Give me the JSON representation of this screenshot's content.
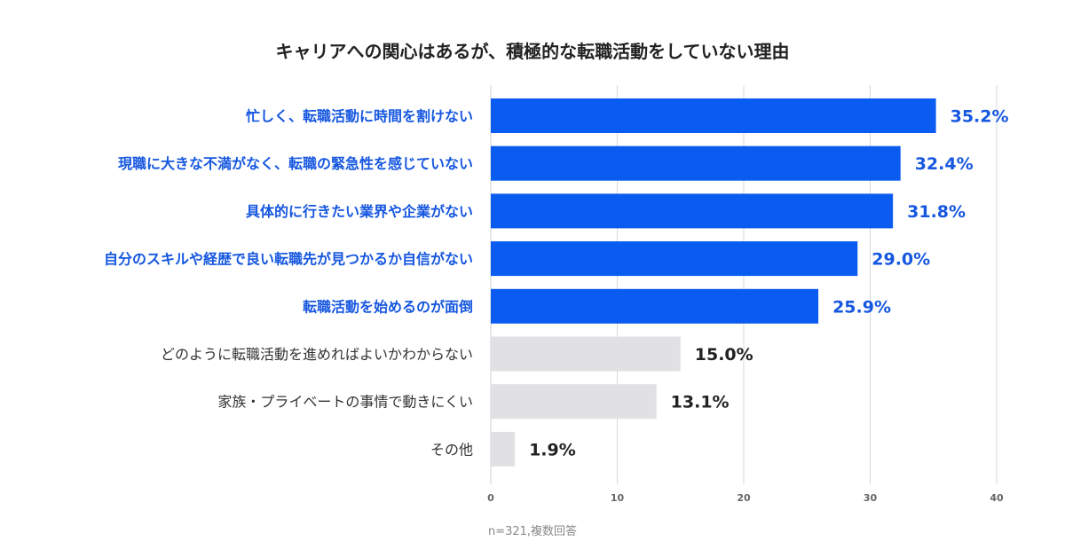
{
  "chart_data": {
    "type": "bar",
    "orientation": "horizontal",
    "title": "キャリアへの関心はあるが、積極的な転職活動をしていない理由",
    "note": "n=321,複数回答",
    "categories": [
      "忙しく、転職活動に時間を割けない",
      "現職に大きな不満がなく、転職の緊急性を感じていない",
      "具体的に行きたい業界や企業がない",
      "自分のスキルや経歴で良い転職先が見つかるか自信がない",
      "転職活動を始めるのが面倒",
      "どのように転職活動を進めればよいかわからない",
      "家族・プライベートの事情で動きにくい",
      "その他"
    ],
    "values": [
      35.2,
      32.4,
      31.8,
      29.0,
      25.9,
      15.0,
      13.1,
      1.9
    ],
    "value_labels": [
      "35.2%",
      "32.4%",
      "31.8%",
      "29.0%",
      "25.9%",
      "15.0%",
      "13.1%",
      "1.9%"
    ],
    "highlighted": [
      true,
      true,
      true,
      true,
      true,
      false,
      false,
      false
    ],
    "xlim": [
      0,
      40
    ],
    "xticks": [
      0,
      10,
      20,
      30,
      40
    ],
    "grid": true,
    "legend": "none",
    "colors": {
      "highlight_bar": "#0a5cf0",
      "highlight_text": "#1657e0",
      "muted_bar": "#e1e1e4",
      "muted_text": "#333333",
      "value_highlight": "#1657e0",
      "value_muted": "#222222",
      "grid": "#d4d8de",
      "tick": "#666666"
    }
  }
}
